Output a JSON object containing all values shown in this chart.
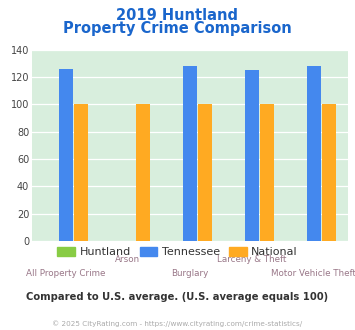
{
  "title_line1": "2019 Huntland",
  "title_line2": "Property Crime Comparison",
  "title_color": "#1a66cc",
  "categories": [
    "All Property Crime",
    "Arson",
    "Burglary",
    "Larceny & Theft",
    "Motor Vehicle Theft"
  ],
  "huntland_values": [
    0,
    0,
    0,
    0,
    0
  ],
  "tennessee_values": [
    126,
    0,
    128,
    125,
    128
  ],
  "national_values": [
    100,
    100,
    100,
    100,
    100
  ],
  "huntland_color": "#88cc44",
  "tennessee_color": "#4488ee",
  "national_color": "#ffaa22",
  "bg_color": "#d8eedd",
  "ylim": [
    0,
    140
  ],
  "yticks": [
    0,
    20,
    40,
    60,
    80,
    100,
    120,
    140
  ],
  "legend_labels": [
    "Huntland",
    "Tennessee",
    "National"
  ],
  "note_text": "Compared to U.S. average. (U.S. average equals 100)",
  "note_color": "#333333",
  "copyright_text": "© 2025 CityRating.com - https://www.cityrating.com/crime-statistics/",
  "copyright_color": "#aaaaaa"
}
